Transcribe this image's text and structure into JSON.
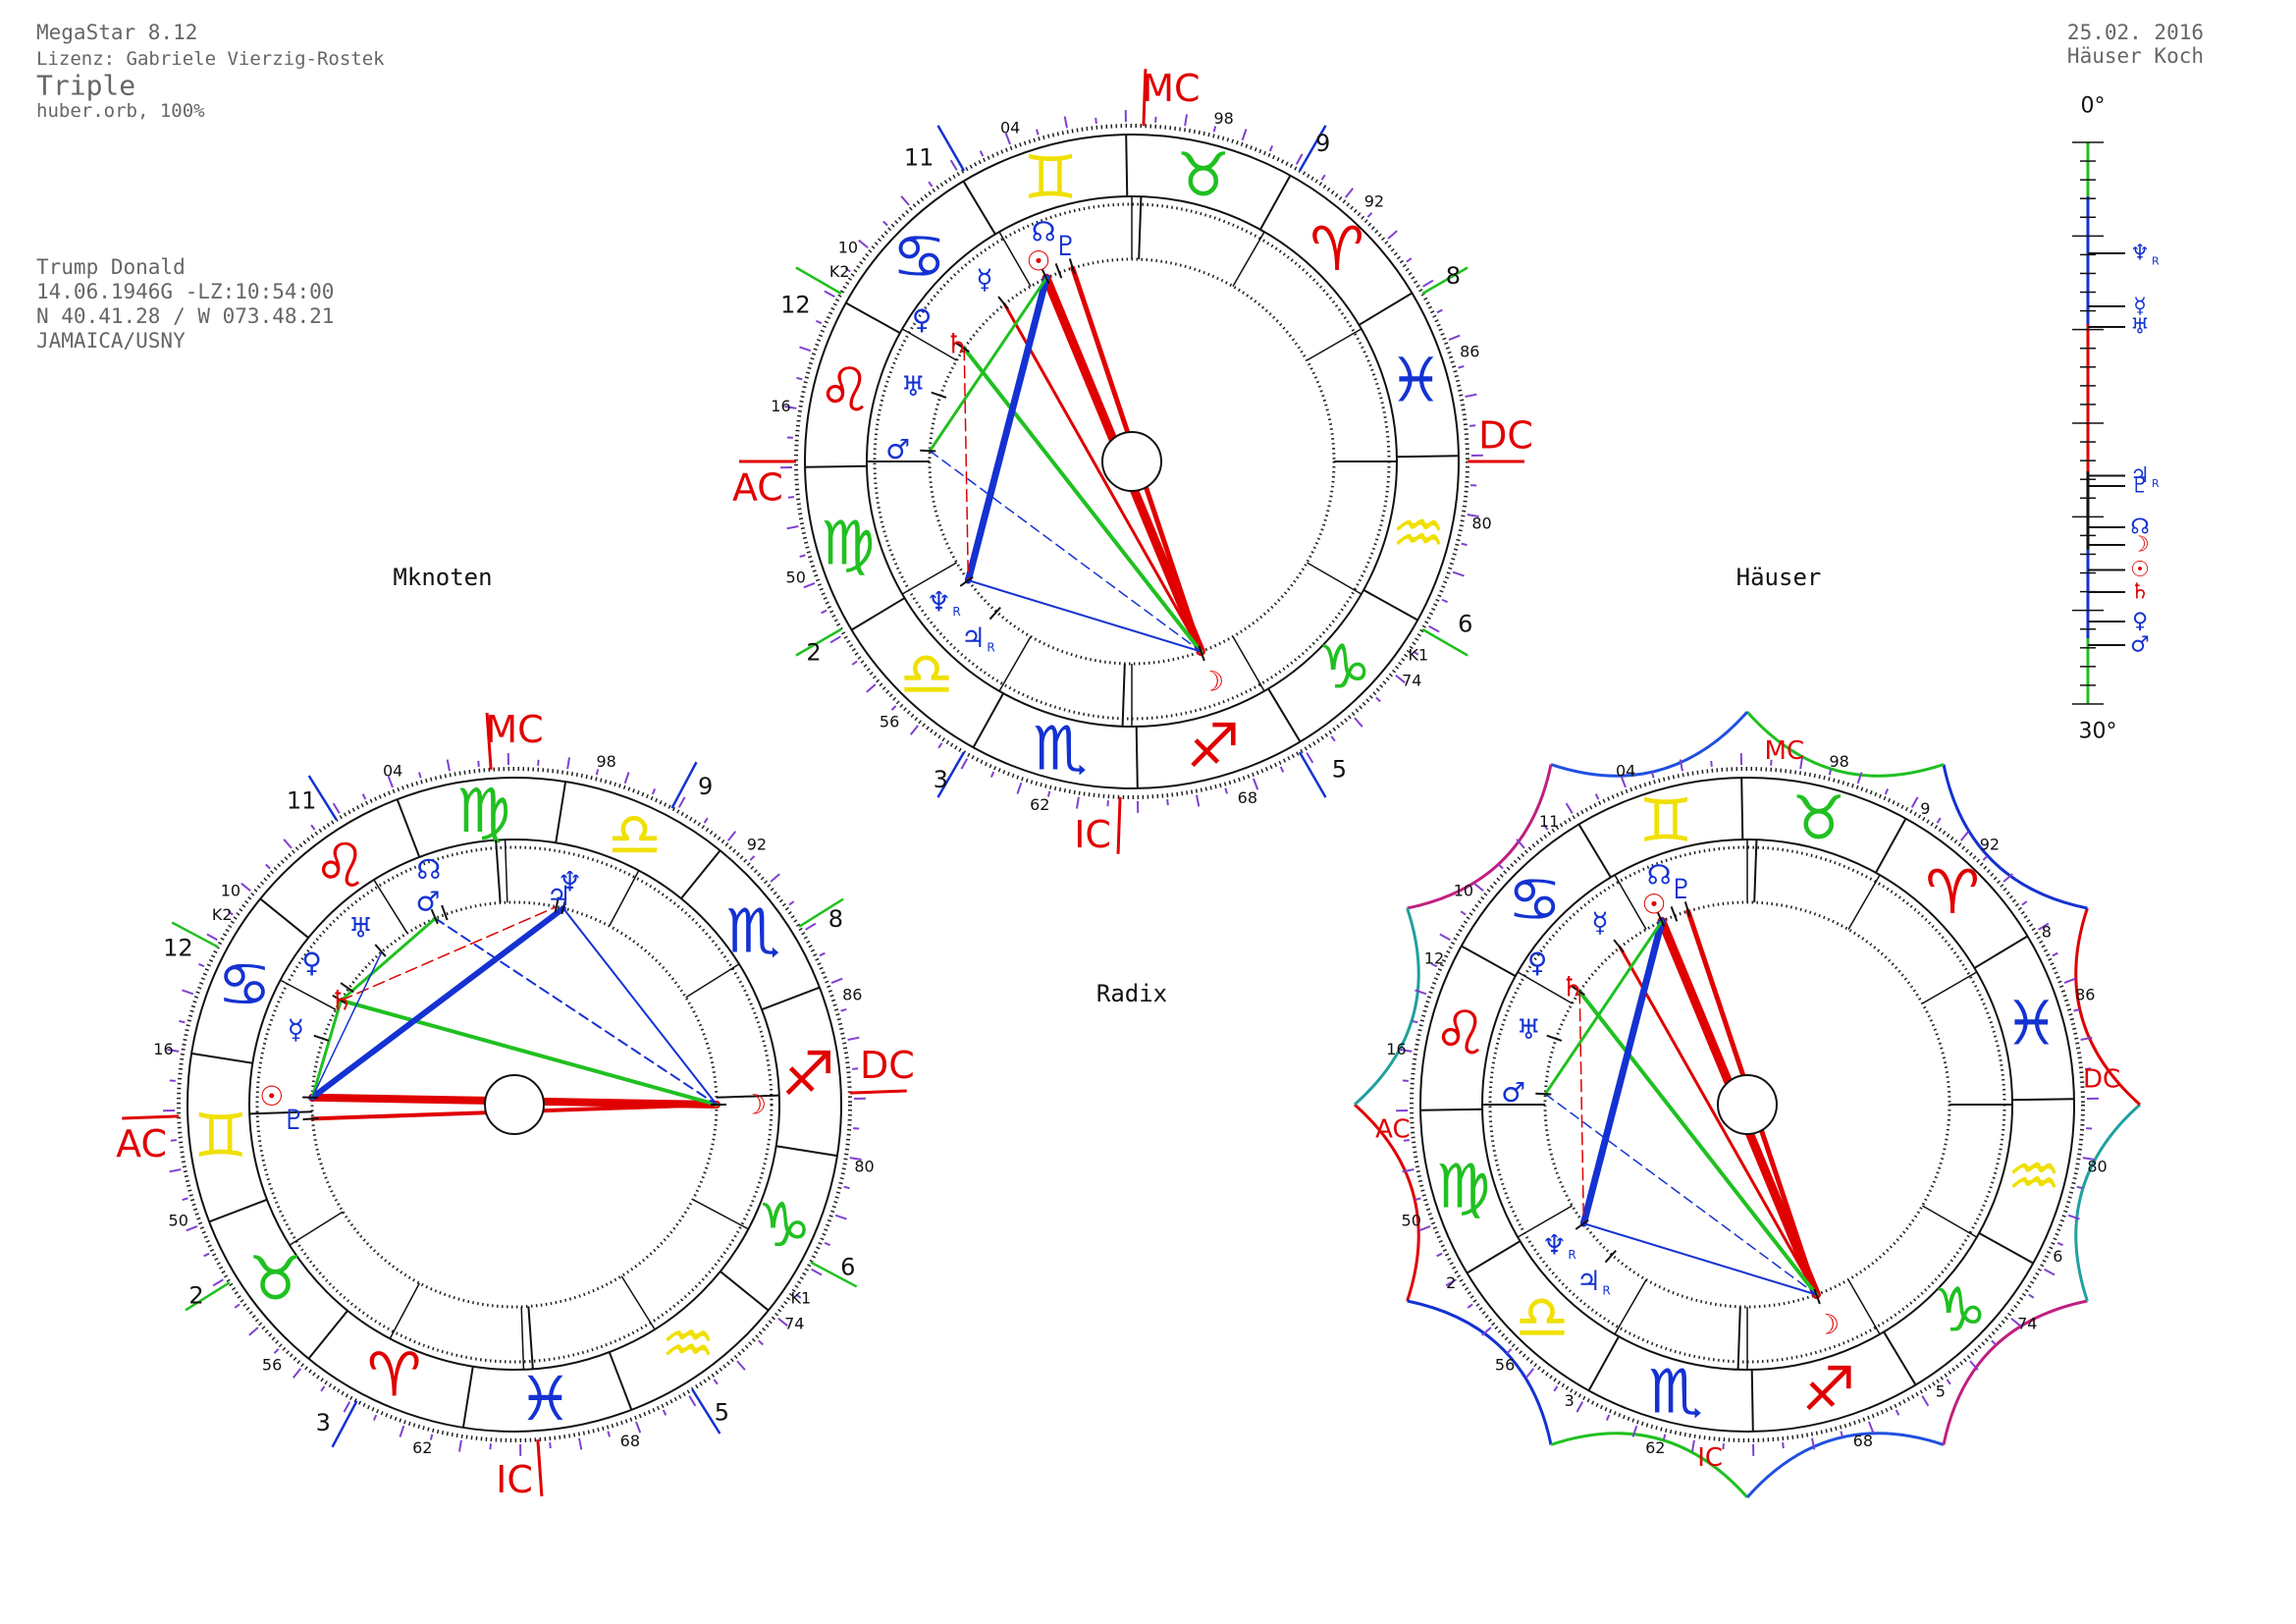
{
  "header": {
    "program": "MegaStar 8.12",
    "license": "Lizenz: Gabriele Vierzig-Rostek",
    "title": "Triple",
    "orb": "huber.orb, 100%",
    "date": "25.02. 2016",
    "house_system": "Häuser Koch"
  },
  "person": {
    "name": "Trump Donald",
    "birth": "14.06.1946G -LZ:10:54:00",
    "coords": "N 40.41.28 / W 073.48.21",
    "place": "JAMAICA/USNY"
  },
  "wheels": [
    {
      "caption": "Radix",
      "angles": {
        "mc": "MC",
        "ic": "IC",
        "ac": "AC",
        "dc": "DC"
      },
      "houses": [
        "2",
        "3",
        "5",
        "6",
        "8",
        "9",
        "11",
        "12"
      ],
      "degrees": [
        "04",
        "98",
        "92",
        "86",
        "80",
        "74",
        "68",
        "62",
        "56",
        "50",
        "16",
        "10"
      ],
      "markers": [
        "K2",
        "K1"
      ],
      "signs": [
        "♈",
        "♉",
        "♊",
        "♋",
        "♌",
        "♍",
        "♎",
        "♏",
        "♐",
        "♑",
        "♒",
        "♓"
      ],
      "planets": [
        {
          "glyph": "☉"
        },
        {
          "glyph": "☽"
        },
        {
          "glyph": "☿"
        },
        {
          "glyph": "♀"
        },
        {
          "glyph": "♂"
        },
        {
          "glyph": "♃",
          "retro": "R"
        },
        {
          "glyph": "♄"
        },
        {
          "glyph": "♅"
        },
        {
          "glyph": "♆",
          "retro": "R"
        },
        {
          "glyph": "♇"
        },
        {
          "glyph": "☊"
        }
      ]
    },
    {
      "caption": "Mknoten",
      "angles": {
        "mc": "MC",
        "ic": "IC",
        "ac": "AC",
        "dc": "DC"
      },
      "houses": [
        "2",
        "3",
        "5",
        "6",
        "8",
        "9",
        "11",
        "12"
      ],
      "degrees": [
        "04",
        "98",
        "92",
        "86",
        "80",
        "74",
        "68",
        "62",
        "56",
        "50",
        "16",
        "10"
      ],
      "markers": [
        "K2",
        "K1"
      ],
      "signs": [
        "♈",
        "♉",
        "♊",
        "♋",
        "♌",
        "♍",
        "♎",
        "♏",
        "♐",
        "♑",
        "♒",
        "♓"
      ],
      "planets": [
        {
          "glyph": "☉"
        },
        {
          "glyph": "☽"
        },
        {
          "glyph": "☿"
        },
        {
          "glyph": "♀"
        },
        {
          "glyph": "♂"
        },
        {
          "glyph": "♃"
        },
        {
          "glyph": "♄"
        },
        {
          "glyph": "♅"
        },
        {
          "glyph": "♆"
        },
        {
          "glyph": "♇"
        },
        {
          "glyph": "☊"
        }
      ]
    },
    {
      "caption": "Häuser",
      "angles": {
        "mc": "MC",
        "ic": "IC",
        "ac": "AC",
        "dc": "DC"
      },
      "houses": [
        "2",
        "3",
        "5",
        "6",
        "8",
        "9",
        "11",
        "12"
      ],
      "degrees": [
        "04",
        "98",
        "92",
        "86",
        "80",
        "74",
        "68",
        "62",
        "56",
        "50",
        "16",
        "10"
      ],
      "signs": [
        "♈",
        "♉",
        "♊",
        "♋",
        "♌",
        "♍",
        "♎",
        "♏",
        "♐",
        "♑",
        "♒",
        "♓"
      ],
      "planets": [
        {
          "glyph": "☉"
        },
        {
          "glyph": "☽"
        },
        {
          "glyph": "☿"
        },
        {
          "glyph": "♀"
        },
        {
          "glyph": "♂"
        },
        {
          "glyph": "♃",
          "retro": "R"
        },
        {
          "glyph": "♄"
        },
        {
          "glyph": "♅"
        },
        {
          "glyph": "♆",
          "retro": "R"
        },
        {
          "glyph": "♇"
        },
        {
          "glyph": "☊"
        }
      ]
    }
  ],
  "ruler": {
    "top": "0°",
    "bottom": "30°",
    "planets": [
      {
        "glyph": "☉"
      },
      {
        "glyph": "☽"
      },
      {
        "glyph": "☿"
      },
      {
        "glyph": "♀"
      },
      {
        "glyph": "♂"
      },
      {
        "glyph": "♃",
        "retro": "R"
      },
      {
        "glyph": "♄"
      },
      {
        "glyph": "♅"
      },
      {
        "glyph": "♆",
        "retro": "R"
      },
      {
        "glyph": "♇"
      },
      {
        "glyph": "☊"
      }
    ]
  }
}
